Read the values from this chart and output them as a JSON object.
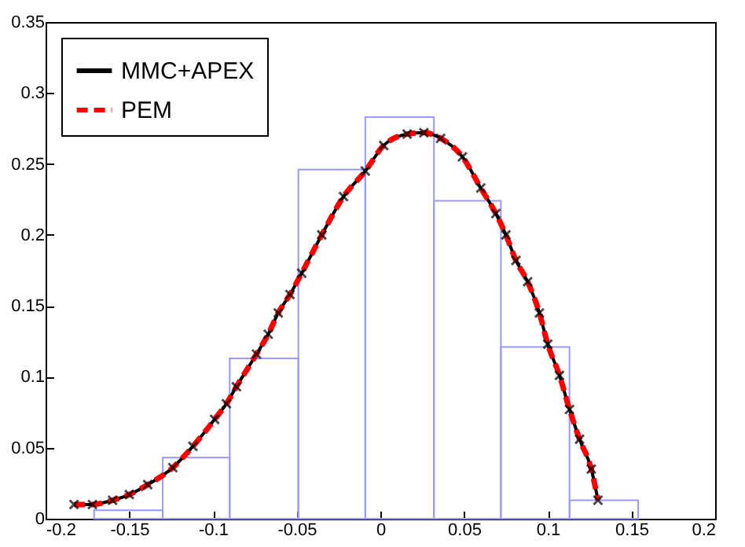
{
  "chart_data": {
    "type": "histogram",
    "bins": [
      -0.171,
      -0.13,
      -0.09,
      -0.049,
      -0.009,
      0.032,
      0.072,
      0.113,
      0.154
    ],
    "values": [
      0.006,
      0.043,
      0.113,
      0.246,
      0.283,
      0.224,
      0.121,
      0.013
    ],
    "color": "#9999ff",
    "x": [
      -0.183,
      -0.172,
      -0.16,
      -0.15,
      -0.139,
      -0.124,
      -0.112,
      -0.099,
      -0.092,
      -0.086,
      -0.074,
      -0.067,
      -0.061,
      -0.054,
      -0.047,
      -0.035,
      -0.022,
      -0.009,
      0.002,
      0.016,
      0.026,
      0.036,
      0.049,
      0.06,
      0.069,
      0.075,
      0.081,
      0.088,
      0.095,
      0.1,
      0.107,
      0.113,
      0.119,
      0.126,
      0.13
    ],
    "series": [
      {
        "name": "MMC+APEX",
        "type": "line",
        "color": "#000000",
        "marker": "cross",
        "line_style": "solid",
        "values": [
          0.01,
          0.01,
          0.013,
          0.017,
          0.024,
          0.036,
          0.051,
          0.07,
          0.081,
          0.093,
          0.116,
          0.13,
          0.145,
          0.158,
          0.173,
          0.2,
          0.227,
          0.245,
          0.263,
          0.271,
          0.272,
          0.268,
          0.255,
          0.233,
          0.215,
          0.2,
          0.182,
          0.167,
          0.145,
          0.123,
          0.101,
          0.077,
          0.056,
          0.035,
          0.013
        ]
      },
      {
        "name": "PEM",
        "type": "line",
        "color": "#ff0000",
        "marker": "none",
        "line_style": "dashed",
        "values": [
          0.01,
          0.01,
          0.013,
          0.017,
          0.024,
          0.036,
          0.051,
          0.07,
          0.081,
          0.093,
          0.116,
          0.13,
          0.145,
          0.158,
          0.173,
          0.2,
          0.227,
          0.245,
          0.263,
          0.271,
          0.272,
          0.268,
          0.255,
          0.233,
          0.215,
          0.2,
          0.182,
          0.167,
          0.145,
          0.123,
          0.101,
          0.077,
          0.056,
          0.035,
          0.013
        ]
      }
    ],
    "xlim": [
      -0.2,
      0.2
    ],
    "xticks": [
      -0.2,
      -0.15,
      -0.1,
      -0.05,
      0,
      0.05,
      0.1,
      0.15,
      0.2
    ],
    "ylim": [
      0,
      0.35
    ],
    "yticks": [
      0,
      0.05,
      0.1,
      0.15,
      0.2,
      0.25,
      0.3,
      0.35
    ],
    "legend": "top left"
  }
}
